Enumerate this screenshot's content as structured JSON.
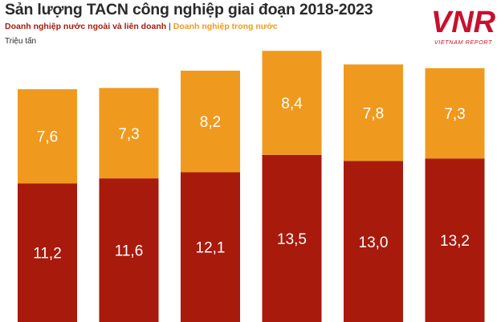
{
  "colors": {
    "foreign": "#A71A0C",
    "domestic": "#EF9A1E",
    "text": "#2a2a2a",
    "brand": "#C8102E"
  },
  "logo": {
    "mark": "VNR",
    "tagline": "VIETNAM REPORT"
  },
  "chart_data": {
    "type": "bar",
    "stacked": true,
    "title": "Sản lượng TACN công nghiệp giai đoạn 2018-2023",
    "ylabel": "Triệu tấn",
    "categories": [
      "",
      "",
      "",
      "",
      "",
      ""
    ],
    "series": [
      {
        "name": "Doanh nghiệp nước ngoài và liên doanh",
        "color": "#A71A0C",
        "values": [
          11.2,
          11.6,
          12.1,
          13.5,
          13.0,
          13.2
        ],
        "labels": [
          "11,2",
          "11,6",
          "12,1",
          "13,5",
          "13,0",
          "13,2"
        ]
      },
      {
        "name": "Doanh nghiệp trong nước",
        "color": "#EF9A1E",
        "values": [
          7.6,
          7.3,
          8.2,
          8.4,
          7.8,
          7.3
        ],
        "labels": [
          "7,6",
          "7,3",
          "8,2",
          "8,4",
          "7,8",
          "7,3"
        ]
      }
    ],
    "legend_placement": "top-left",
    "grid": false
  }
}
